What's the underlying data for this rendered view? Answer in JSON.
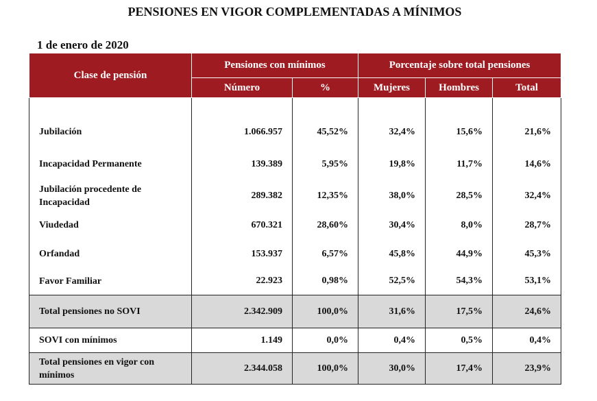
{
  "title": "PENSIONES EN VIGOR COMPLEMENTADAS A MÍNIMOS",
  "subtitle": "1 de enero de 2020",
  "header": {
    "clase": "Clase de pensión",
    "group1": "Pensiones con mínimos",
    "group2": "Porcentaje sobre total pensiones",
    "numero": "Número",
    "pct": "%",
    "mujeres": "Mujeres",
    "hombres": "Hombres",
    "total": "Total"
  },
  "header_color": "#9E1B22",
  "rows": [
    {
      "label": "Jubilación",
      "numero": "1.066.957",
      "pct": "45,52%",
      "mujeres": "32,4%",
      "hombres": "15,6%",
      "total": "21,6%"
    },
    {
      "label": "Incapacidad Permanente",
      "numero": "139.389",
      "pct": "5,95%",
      "mujeres": "19,8%",
      "hombres": "11,7%",
      "total": "14,6%"
    },
    {
      "label": "Jubilación procedente de Incapacidad",
      "numero": "289.382",
      "pct": "12,35%",
      "mujeres": "38,0%",
      "hombres": "28,5%",
      "total": "32,4%"
    },
    {
      "label": "Viudedad",
      "numero": "670.321",
      "pct": "28,60%",
      "mujeres": "30,4%",
      "hombres": "8,0%",
      "total": "28,7%"
    },
    {
      "label": "Orfandad",
      "numero": "153.937",
      "pct": "6,57%",
      "mujeres": "45,8%",
      "hombres": "44,9%",
      "total": "45,3%"
    },
    {
      "label": "Favor Familiar",
      "numero": "22.923",
      "pct": "0,98%",
      "mujeres": "52,5%",
      "hombres": "54,3%",
      "total": "53,1%"
    },
    {
      "label": "Total pensiones no SOVI",
      "numero": "2.342.909",
      "pct": "100,0%",
      "mujeres": "31,6%",
      "hombres": "17,5%",
      "total": "24,6%"
    },
    {
      "label": "SOVI con mínimos",
      "numero": "1.149",
      "pct": "0,0%",
      "mujeres": "0,4%",
      "hombres": "0,5%",
      "total": "0,4%"
    },
    {
      "label": "Total pensiones en vigor con mínimos",
      "numero": "2.344.058",
      "pct": "100,0%",
      "mujeres": "30,0%",
      "hombres": "17,4%",
      "total": "23,9%"
    }
  ]
}
